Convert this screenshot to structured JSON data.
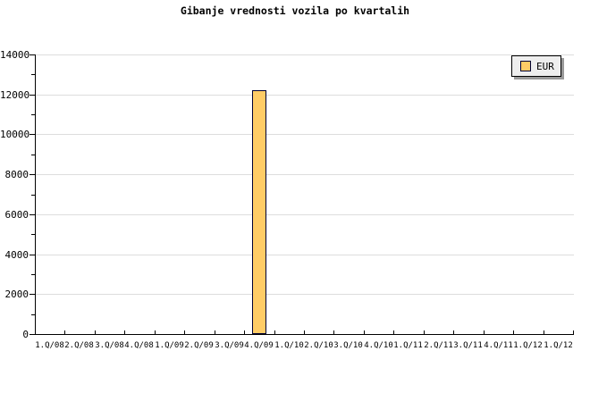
{
  "window": {
    "background": "#ffffff"
  },
  "chart_data": {
    "type": "bar",
    "title": "Gibanje vrednosti vozila po kvartalih",
    "xlabel": "",
    "ylabel": "",
    "categories": [
      "1.Q/08",
      "2.Q/08",
      "3.Q/08",
      "4.Q/08",
      "1.Q/09",
      "2.Q/09",
      "3.Q/09",
      "4.Q/09",
      "1.Q/10",
      "2.Q/10",
      "3.Q/10",
      "4.Q/10",
      "1.Q/11",
      "2.Q/11",
      "3.Q/11",
      "4.Q/11",
      "1.Q/12",
      "1.Q/12"
    ],
    "series": [
      {
        "name": "EUR",
        "values": [
          0,
          0,
          0,
          0,
          0,
          0,
          0,
          12200,
          0,
          0,
          0,
          0,
          0,
          0,
          0,
          0,
          0,
          0
        ],
        "color": "#ffcc66",
        "border_color": "#000033"
      }
    ],
    "ylim": [
      0,
      14000
    ],
    "y_major_step": 2000,
    "y_minor_step": 1000,
    "y_tick_labels": [
      "0",
      "2000",
      "4000",
      "6000",
      "8000",
      "10000",
      "12000",
      "14000"
    ],
    "grid": "horizontal-major",
    "legend_position": "top-right"
  },
  "colors": {
    "grid": "#dddddd",
    "axis": "#000000",
    "text": "#000000",
    "bar_fill": "#ffcc66",
    "bar_border": "#000033",
    "legend_bg": "#eeeeee",
    "legend_border": "#000000",
    "legend_shadow": "#999999"
  }
}
